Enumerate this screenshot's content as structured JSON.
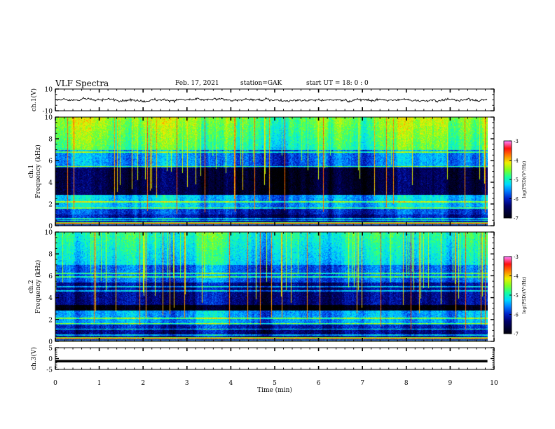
{
  "header": {
    "title": "VLF Spectra",
    "date": "Feb. 17, 2021",
    "station": "station=GAK",
    "start_time": "start  UT =   18: 0  : 0"
  },
  "colors": {
    "spectrum_scale": [
      "#000000",
      "#000030",
      "#00006a",
      "#0020c8",
      "#0078ff",
      "#00dcff",
      "#18ffa0",
      "#80ff20",
      "#f0f000",
      "#ff8000",
      "#ff1010",
      "#ff80ff"
    ],
    "waveform": "#000000",
    "ch3_trace": "#000000"
  },
  "chart_data": [
    {
      "type": "line",
      "id": "ch1-waveform",
      "ylabel": "ch.1(V)",
      "ylim": [
        -10,
        10
      ],
      "y_tick_labels": [
        "10",
        "-10"
      ],
      "x_range_min": [
        0,
        9.85
      ],
      "description_mean_v": 0,
      "approx_amplitude_v": 2.5
    },
    {
      "type": "heatmap",
      "id": "ch1-spectrogram",
      "ylabel": "ch.1  Frequency (kHz)",
      "ylim_khz": [
        0,
        10
      ],
      "y_tick_labels": [
        "0",
        "2",
        "4",
        "6",
        "8",
        "10"
      ],
      "x_range_min": [
        0,
        9.85
      ],
      "colorbar": {
        "label": "log(PSD)(V²/Hz)",
        "range": [
          -7,
          -3
        ],
        "tick_labels": [
          "-3",
          "-4",
          "-5",
          "-6",
          "-7"
        ]
      }
    },
    {
      "type": "heatmap",
      "id": "ch2-spectrogram",
      "ylabel": "ch.2  Frequency (kHz)",
      "ylim_khz": [
        0,
        10
      ],
      "y_tick_labels": [
        "0",
        "2",
        "4",
        "6",
        "8",
        "10"
      ],
      "x_range_min": [
        0,
        9.85
      ],
      "colorbar": {
        "label": "log(PSD)(V²/Hz)",
        "range": [
          -7,
          -3
        ],
        "tick_labels": [
          "-3",
          "-4",
          "-5",
          "-6",
          "-7"
        ]
      }
    },
    {
      "type": "line",
      "id": "ch3-trace",
      "ylabel": "ch.3(V)",
      "ylim": [
        -5,
        5
      ],
      "y_tick_labels": [
        "5",
        "0",
        "-5"
      ],
      "x_range_min": [
        0,
        9.85
      ],
      "value_v": -1.2
    }
  ],
  "x_axis": {
    "label": "Time  (min)",
    "range": [
      0,
      10
    ],
    "tick_labels": [
      "0",
      "1",
      "2",
      "3",
      "4",
      "5",
      "6",
      "7",
      "8",
      "9",
      "10"
    ]
  }
}
